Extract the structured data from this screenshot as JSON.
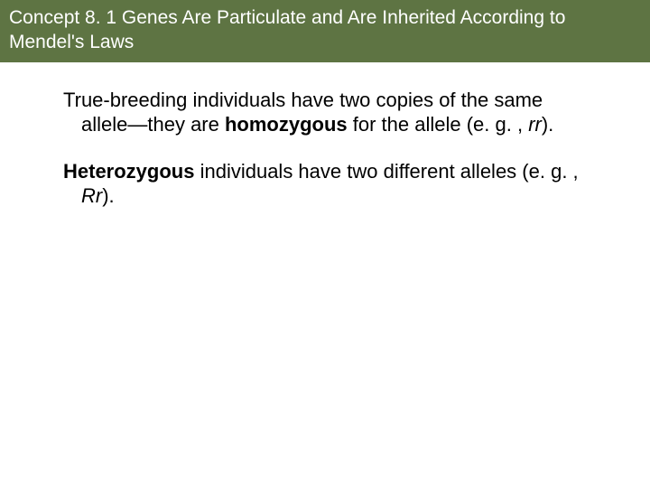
{
  "header": {
    "title": "Concept 8. 1 Genes Are Particulate and Are Inherited According to Mendel's Laws",
    "bg_color": "#5e7443",
    "text_color": "#ffffff",
    "font_size": 21
  },
  "body": {
    "font_size": 22,
    "text_color": "#000000",
    "paragraphs": [
      {
        "runs": [
          {
            "text": "True-breeding individuals have two copies of the same allele—they are ",
            "bold": false,
            "italic": false
          },
          {
            "text": "homozygous",
            "bold": true,
            "italic": false
          },
          {
            "text": " for the allele (e. g. , ",
            "bold": false,
            "italic": false
          },
          {
            "text": "rr",
            "bold": false,
            "italic": true
          },
          {
            "text": ").",
            "bold": false,
            "italic": false
          }
        ]
      },
      {
        "runs": [
          {
            "text": "Heterozygous",
            "bold": true,
            "italic": false
          },
          {
            "text": " individuals have two different alleles (e. g. , ",
            "bold": false,
            "italic": false
          },
          {
            "text": "Rr",
            "bold": false,
            "italic": true
          },
          {
            "text": ").",
            "bold": false,
            "italic": false
          }
        ]
      }
    ]
  }
}
